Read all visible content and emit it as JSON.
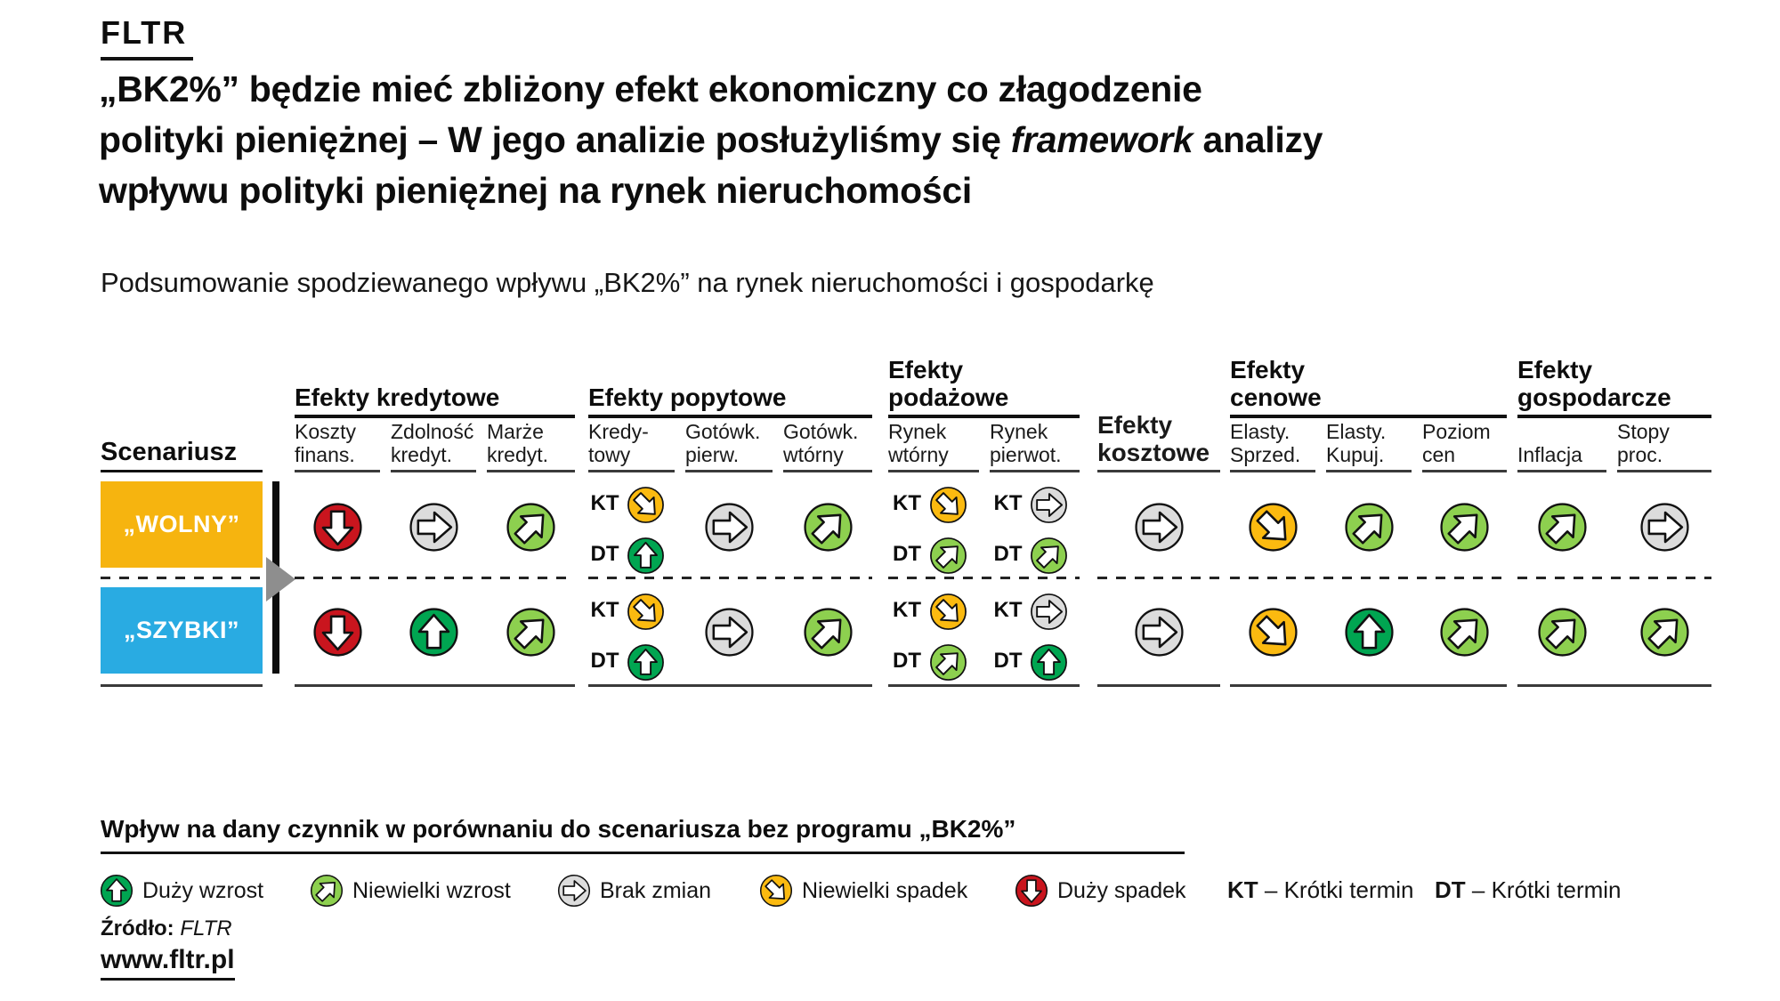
{
  "logo": "FLTR",
  "title": {
    "line1": "„BK2%” będzie mieć zbliżony efekt ekonomiczny co złagodzenie",
    "line2_pre": "polityki pieniężnej – W jego analizie posłużyliśmy się ",
    "line2_italic": "framework",
    "line2_post": " analizy",
    "line3": "wpływu polityki pieniężnej na rynek nieruchomości"
  },
  "subtitle": "Podsumowanie spodziewanego wpływu „BK2%” na rynek nieruchomości i gospodarkę",
  "table": {
    "scenario_header": "Scenariusz",
    "groups": [
      {
        "id": "kredytowe",
        "label_lines": [
          "Efekty kredytowe"
        ],
        "columns": [
          {
            "id": "koszty_finans",
            "lines": [
              "Koszty",
              "finans."
            ]
          },
          {
            "id": "zdolnosc_kredyt",
            "lines": [
              "Zdolność",
              "kredyt."
            ]
          },
          {
            "id": "marze_kredyt",
            "lines": [
              "Marże",
              "kredyt."
            ]
          }
        ]
      },
      {
        "id": "popytowe",
        "label_lines": [
          "Efekty popytowe"
        ],
        "columns": [
          {
            "id": "kredytowy",
            "lines": [
              "Kredy-",
              "towy"
            ]
          },
          {
            "id": "gotowk_pierw",
            "lines": [
              "Gotówk.",
              "pierw."
            ]
          },
          {
            "id": "gotowk_wtorny",
            "lines": [
              "Gotówk.",
              "wtórny"
            ]
          }
        ]
      },
      {
        "id": "podazowe",
        "label_lines": [
          "Efekty",
          "podażowe"
        ],
        "columns": [
          {
            "id": "rynek_wtorny",
            "lines": [
              "Rynek",
              "wtórny"
            ]
          },
          {
            "id": "rynek_pierwot",
            "lines": [
              "Rynek",
              "pierwot."
            ]
          }
        ]
      },
      {
        "id": "kosztowe",
        "label_lines": [],
        "bold_sub": true,
        "columns": [
          {
            "id": "efekty_kosztowe",
            "lines": [
              "Efekty",
              "kosztowe"
            ]
          }
        ]
      },
      {
        "id": "cenowe",
        "label_lines": [
          "Efekty",
          "cenowe"
        ],
        "columns": [
          {
            "id": "elasty_sprzed",
            "lines": [
              "Elasty.",
              "Sprzed."
            ]
          },
          {
            "id": "elasty_kupuj",
            "lines": [
              "Elasty.",
              "Kupuj."
            ]
          },
          {
            "id": "poziom_cen",
            "lines": [
              "Poziom",
              "cen"
            ]
          }
        ]
      },
      {
        "id": "gospodarcze",
        "label_lines": [
          "Efekty",
          "gospodarcze"
        ],
        "columns": [
          {
            "id": "inflacja",
            "lines": [
              "Inflacja"
            ]
          },
          {
            "id": "stopy_proc",
            "lines": [
              "Stopy",
              "proc."
            ]
          }
        ]
      }
    ],
    "scenarios": [
      {
        "id": "wolny",
        "label": "„WOLNY”",
        "color": "#f6b40f"
      },
      {
        "id": "szybki",
        "label": "„SZYBKI”",
        "color": "#29abe2"
      }
    ]
  },
  "chart_data": {
    "type": "table",
    "title": "Podsumowanie spodziewanego wpływu „BK2%” na rynek nieruchomości i gospodarkę",
    "row_header": "Scenariusz",
    "rows": [
      "„WOLNY”",
      "„SZYBKI”"
    ],
    "column_groups": [
      {
        "name": "Efekty kredytowe",
        "columns": [
          "Koszty finans.",
          "Zdolność kredyt.",
          "Marże kredyt."
        ]
      },
      {
        "name": "Efekty popytowe",
        "columns": [
          "Kredy-towy",
          "Gotówk. pierw.",
          "Gotówk. wtórny"
        ]
      },
      {
        "name": "Efekty podażowe",
        "columns": [
          "Rynek wtórny",
          "Rynek pierwot."
        ]
      },
      {
        "name": "Efekty kosztowe",
        "columns": [
          "Efekty kosztowe"
        ]
      },
      {
        "name": "Efekty cenowe",
        "columns": [
          "Elasty. Sprzed.",
          "Elasty. Kupuj.",
          "Poziom cen"
        ]
      },
      {
        "name": "Efekty gospodarcze",
        "columns": [
          "Inflacja",
          "Stopy proc."
        ]
      }
    ],
    "scale": {
      "duzy-wzrost": "Duży wzrost",
      "niewielki-wzrost": "Niewielki wzrost",
      "brak-zmian": "Brak zmian",
      "niewielki-spadek": "Niewielki spadek",
      "duzy-spadek": "Duży spadek"
    },
    "values": {
      "wolny": {
        "koszty_finans": "duzy-spadek",
        "zdolnosc_kredyt": "brak-zmian",
        "marze_kredyt": "niewielki-wzrost",
        "kredytowy": {
          "KT": "niewielki-spadek",
          "DT": "duzy-wzrost"
        },
        "gotowk_pierw": "brak-zmian",
        "gotowk_wtorny": "niewielki-wzrost",
        "rynek_wtorny": {
          "KT": "niewielki-spadek",
          "DT": "niewielki-wzrost"
        },
        "rynek_pierwot": {
          "KT": "brak-zmian",
          "DT": "niewielki-wzrost"
        },
        "efekty_kosztowe": "brak-zmian",
        "elasty_sprzed": "niewielki-spadek",
        "elasty_kupuj": "niewielki-wzrost",
        "poziom_cen": "niewielki-wzrost",
        "inflacja": "niewielki-wzrost",
        "stopy_proc": "brak-zmian"
      },
      "szybki": {
        "koszty_finans": "duzy-spadek",
        "zdolnosc_kredyt": "duzy-wzrost",
        "marze_kredyt": "niewielki-wzrost",
        "kredytowy": {
          "KT": "niewielki-spadek",
          "DT": "duzy-wzrost"
        },
        "gotowk_pierw": "brak-zmian",
        "gotowk_wtorny": "niewielki-wzrost",
        "rynek_wtorny": {
          "KT": "niewielki-spadek",
          "DT": "niewielki-wzrost"
        },
        "rynek_pierwot": {
          "KT": "brak-zmian",
          "DT": "duzy-wzrost"
        },
        "efekty_kosztowe": "brak-zmian",
        "elasty_sprzed": "niewielki-spadek",
        "elasty_kupuj": "duzy-wzrost",
        "poziom_cen": "niewielki-wzrost",
        "inflacja": "niewielki-wzrost",
        "stopy_proc": "niewielki-wzrost"
      }
    }
  },
  "legend": {
    "heading": "Wpływ na dany czynnik w porównaniu do scenariusza bez programu „BK2%”",
    "items": [
      {
        "type": "duzy-wzrost",
        "label": "Duży wzrost"
      },
      {
        "type": "niewielki-wzrost",
        "label": "Niewielki wzrost"
      },
      {
        "type": "brak-zmian",
        "label": "Brak zmian"
      },
      {
        "type": "niewielki-spadek",
        "label": "Niewielki spadek"
      },
      {
        "type": "duzy-spadek",
        "label": "Duży spadek"
      }
    ],
    "terms": [
      {
        "abbr": "KT",
        "sep": "–",
        "label": "Krótki termin"
      },
      {
        "abbr": "DT",
        "sep": "–",
        "label": "Krótki termin"
      }
    ]
  },
  "source": {
    "label": "Źródło:",
    "value": "FLTR"
  },
  "website": "www.fltr.pl",
  "colors": {
    "icons": {
      "duzy-wzrost": "#00a551",
      "niewielki-wzrost": "#8dd04f",
      "brak-zmian": "#dcdcdc",
      "niewielki-spadek": "#fbba10",
      "duzy-spadek": "#c9151e"
    },
    "triangle": "#8e8e8e",
    "line": "#111111"
  }
}
